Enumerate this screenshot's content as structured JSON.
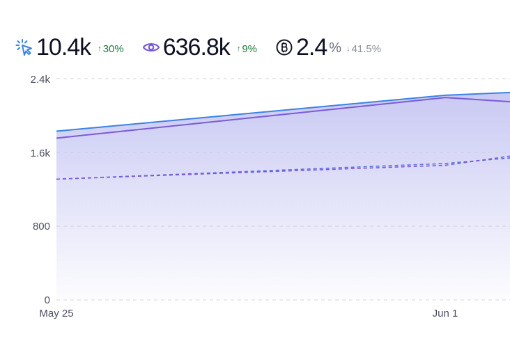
{
  "stats": [
    {
      "icon": "cursor-click-icon",
      "value": "10.4k",
      "unit": "",
      "change": "30%",
      "direction": "up"
    },
    {
      "icon": "eye-icon",
      "value": "636.8k",
      "unit": "",
      "change": "9%",
      "direction": "up"
    },
    {
      "icon": "bitcoin-icon",
      "value": "2.4",
      "unit": "%",
      "change": "41.5%",
      "direction": "down"
    }
  ],
  "colors": {
    "blue": "#3b82e6",
    "purple": "#7b5ad6",
    "fill": "#c9c9f4",
    "up": "#1e7a3b",
    "down": "#8a8f99"
  },
  "chart_data": {
    "type": "area",
    "x_ticks": [
      "May 25",
      "Jun 1"
    ],
    "y_ticks": [
      "0",
      "800",
      "1.6k",
      "2.4k"
    ],
    "ylim": [
      0,
      2400
    ],
    "x": [
      "May 25",
      "Jun 1",
      "Jun 2"
    ],
    "grid": true,
    "series": [
      {
        "key": "clicks",
        "style": "solid",
        "color": "#3b82e6",
        "values": [
          1830,
          2220,
          2250
        ]
      },
      {
        "key": "views",
        "style": "solid",
        "color": "#7b5ad6",
        "values": [
          1755,
          2195,
          2150
        ]
      },
      {
        "key": "clicks-previous",
        "style": "dashed",
        "color": "#5b6fe0",
        "values": [
          1310,
          1480,
          1540
        ]
      },
      {
        "key": "views-previous",
        "style": "dashed",
        "color": "#7b5ad6",
        "values": [
          1310,
          1460,
          1560
        ]
      }
    ]
  }
}
